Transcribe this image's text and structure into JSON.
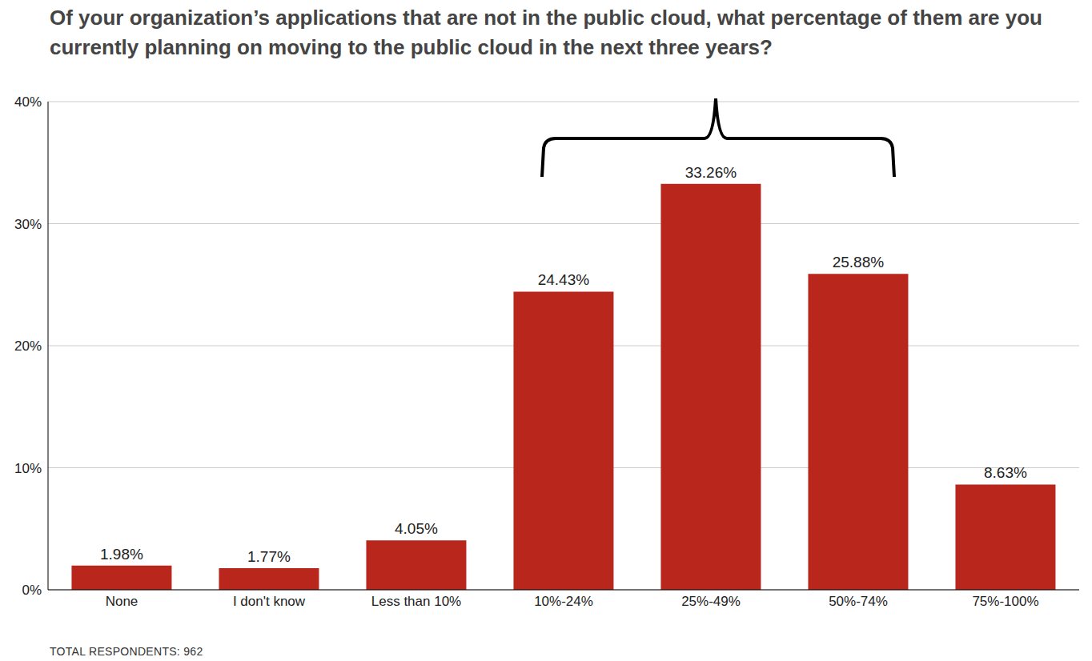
{
  "chart_data": {
    "type": "bar",
    "title": "Of your organization’s applications that are not in the public cloud, what percentage of them are you currently planning on moving to the public cloud in the next three years?",
    "categories": [
      "None",
      "I don't know",
      "Less than 10%",
      "10%-24%",
      "25%-49%",
      "50%-74%",
      "75%-100%"
    ],
    "values": [
      1.98,
      1.77,
      4.05,
      24.43,
      33.26,
      25.88,
      8.63
    ],
    "value_labels": [
      "1.98%",
      "1.77%",
      "4.05%",
      "24.43%",
      "33.26%",
      "25.88%",
      "8.63%"
    ],
    "color": "#b9261c",
    "ylim": [
      0,
      40
    ],
    "yticks": [
      {
        "value": 0,
        "label": "0%"
      },
      {
        "value": 10,
        "label": "10%"
      },
      {
        "value": 20,
        "label": "20%"
      },
      {
        "value": 30,
        "label": "30%"
      },
      {
        "value": 40,
        "label": "40%"
      }
    ],
    "grid": true,
    "data_labels": true,
    "footnote": "TOTAL RESPONDENTS: 962"
  }
}
